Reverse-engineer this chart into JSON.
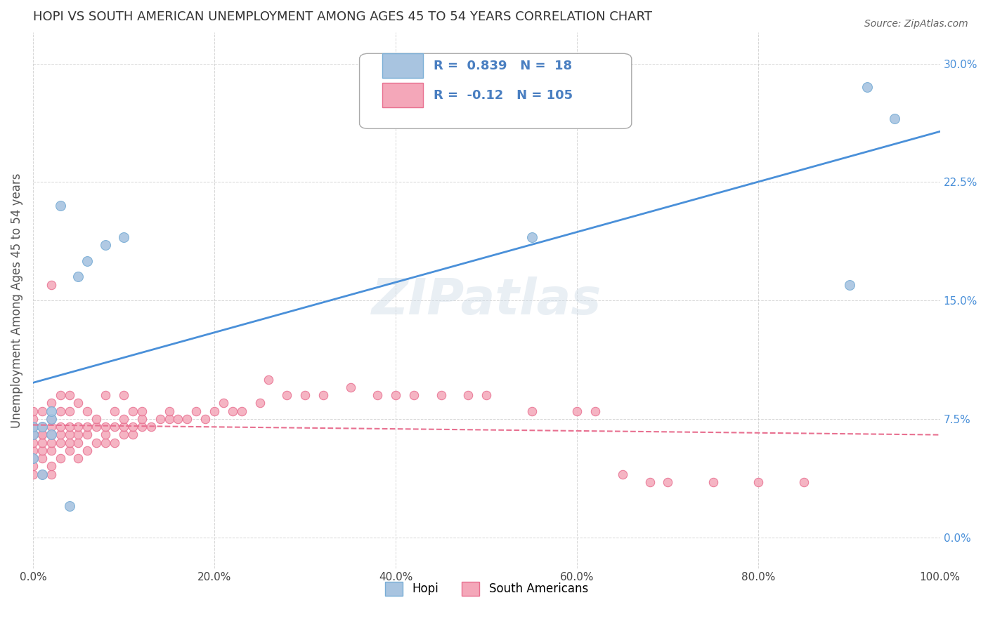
{
  "title": "HOPI VS SOUTH AMERICAN UNEMPLOYMENT AMONG AGES 45 TO 54 YEARS CORRELATION CHART",
  "source": "Source: ZipAtlas.com",
  "xlabel": "",
  "ylabel": "Unemployment Among Ages 45 to 54 years",
  "xlim": [
    0,
    1.0
  ],
  "ylim": [
    -0.02,
    0.32
  ],
  "xticks": [
    0.0,
    0.2,
    0.4,
    0.6,
    0.8,
    1.0
  ],
  "xticklabels": [
    "0.0%",
    "20.0%",
    "40.0%",
    "60.0%",
    "80.0%",
    "100.0%"
  ],
  "yticks": [
    0.0,
    0.075,
    0.15,
    0.225,
    0.3
  ],
  "yticklabels": [
    "0.0%",
    "7.5%",
    "15.0%",
    "22.5%",
    "30.0%"
  ],
  "hopi_color": "#a8c4e0",
  "hopi_edge_color": "#7aaed6",
  "sa_color": "#f4a7b9",
  "sa_edge_color": "#e87090",
  "hopi_line_color": "#4a90d9",
  "sa_line_color": "#e87090",
  "legend_text_color": "#4a7fc1",
  "background_color": "#ffffff",
  "grid_color": "#cccccc",
  "watermark": "ZIPatlas",
  "hopi_R": 0.839,
  "hopi_N": 18,
  "sa_R": -0.12,
  "sa_N": 105,
  "hopi_x": [
    0.0,
    0.0,
    0.0,
    0.01,
    0.01,
    0.02,
    0.02,
    0.02,
    0.03,
    0.04,
    0.05,
    0.06,
    0.08,
    0.1,
    0.55,
    0.9,
    0.92,
    0.95
  ],
  "hopi_y": [
    0.05,
    0.065,
    0.07,
    0.04,
    0.07,
    0.065,
    0.075,
    0.08,
    0.21,
    0.02,
    0.165,
    0.175,
    0.185,
    0.19,
    0.19,
    0.16,
    0.285,
    0.265
  ],
  "sa_x": [
    0.0,
    0.0,
    0.0,
    0.0,
    0.0,
    0.0,
    0.0,
    0.0,
    0.0,
    0.0,
    0.0,
    0.0,
    0.0,
    0.01,
    0.01,
    0.01,
    0.01,
    0.01,
    0.01,
    0.01,
    0.01,
    0.01,
    0.02,
    0.02,
    0.02,
    0.02,
    0.02,
    0.02,
    0.02,
    0.02,
    0.02,
    0.03,
    0.03,
    0.03,
    0.03,
    0.03,
    0.03,
    0.04,
    0.04,
    0.04,
    0.04,
    0.04,
    0.04,
    0.05,
    0.05,
    0.05,
    0.05,
    0.05,
    0.06,
    0.06,
    0.06,
    0.06,
    0.07,
    0.07,
    0.07,
    0.08,
    0.08,
    0.08,
    0.08,
    0.09,
    0.09,
    0.09,
    0.1,
    0.1,
    0.1,
    0.1,
    0.11,
    0.11,
    0.11,
    0.12,
    0.12,
    0.12,
    0.13,
    0.14,
    0.15,
    0.15,
    0.16,
    0.17,
    0.18,
    0.19,
    0.2,
    0.21,
    0.22,
    0.23,
    0.25,
    0.26,
    0.28,
    0.3,
    0.32,
    0.35,
    0.38,
    0.4,
    0.42,
    0.45,
    0.48,
    0.5,
    0.55,
    0.6,
    0.62,
    0.65,
    0.68,
    0.7,
    0.75,
    0.8,
    0.85
  ],
  "sa_y": [
    0.04,
    0.045,
    0.05,
    0.055,
    0.06,
    0.065,
    0.065,
    0.065,
    0.07,
    0.07,
    0.07,
    0.075,
    0.08,
    0.04,
    0.05,
    0.055,
    0.06,
    0.065,
    0.065,
    0.07,
    0.07,
    0.08,
    0.04,
    0.045,
    0.055,
    0.06,
    0.065,
    0.07,
    0.075,
    0.085,
    0.16,
    0.05,
    0.06,
    0.065,
    0.07,
    0.08,
    0.09,
    0.055,
    0.06,
    0.065,
    0.07,
    0.08,
    0.09,
    0.05,
    0.06,
    0.065,
    0.07,
    0.085,
    0.055,
    0.065,
    0.07,
    0.08,
    0.06,
    0.07,
    0.075,
    0.06,
    0.065,
    0.07,
    0.09,
    0.06,
    0.07,
    0.08,
    0.065,
    0.07,
    0.075,
    0.09,
    0.065,
    0.07,
    0.08,
    0.07,
    0.075,
    0.08,
    0.07,
    0.075,
    0.075,
    0.08,
    0.075,
    0.075,
    0.08,
    0.075,
    0.08,
    0.085,
    0.08,
    0.08,
    0.085,
    0.1,
    0.09,
    0.09,
    0.09,
    0.095,
    0.09,
    0.09,
    0.09,
    0.09,
    0.09,
    0.09,
    0.08,
    0.08,
    0.08,
    0.04,
    0.035,
    0.035,
    0.035,
    0.035,
    0.035
  ]
}
